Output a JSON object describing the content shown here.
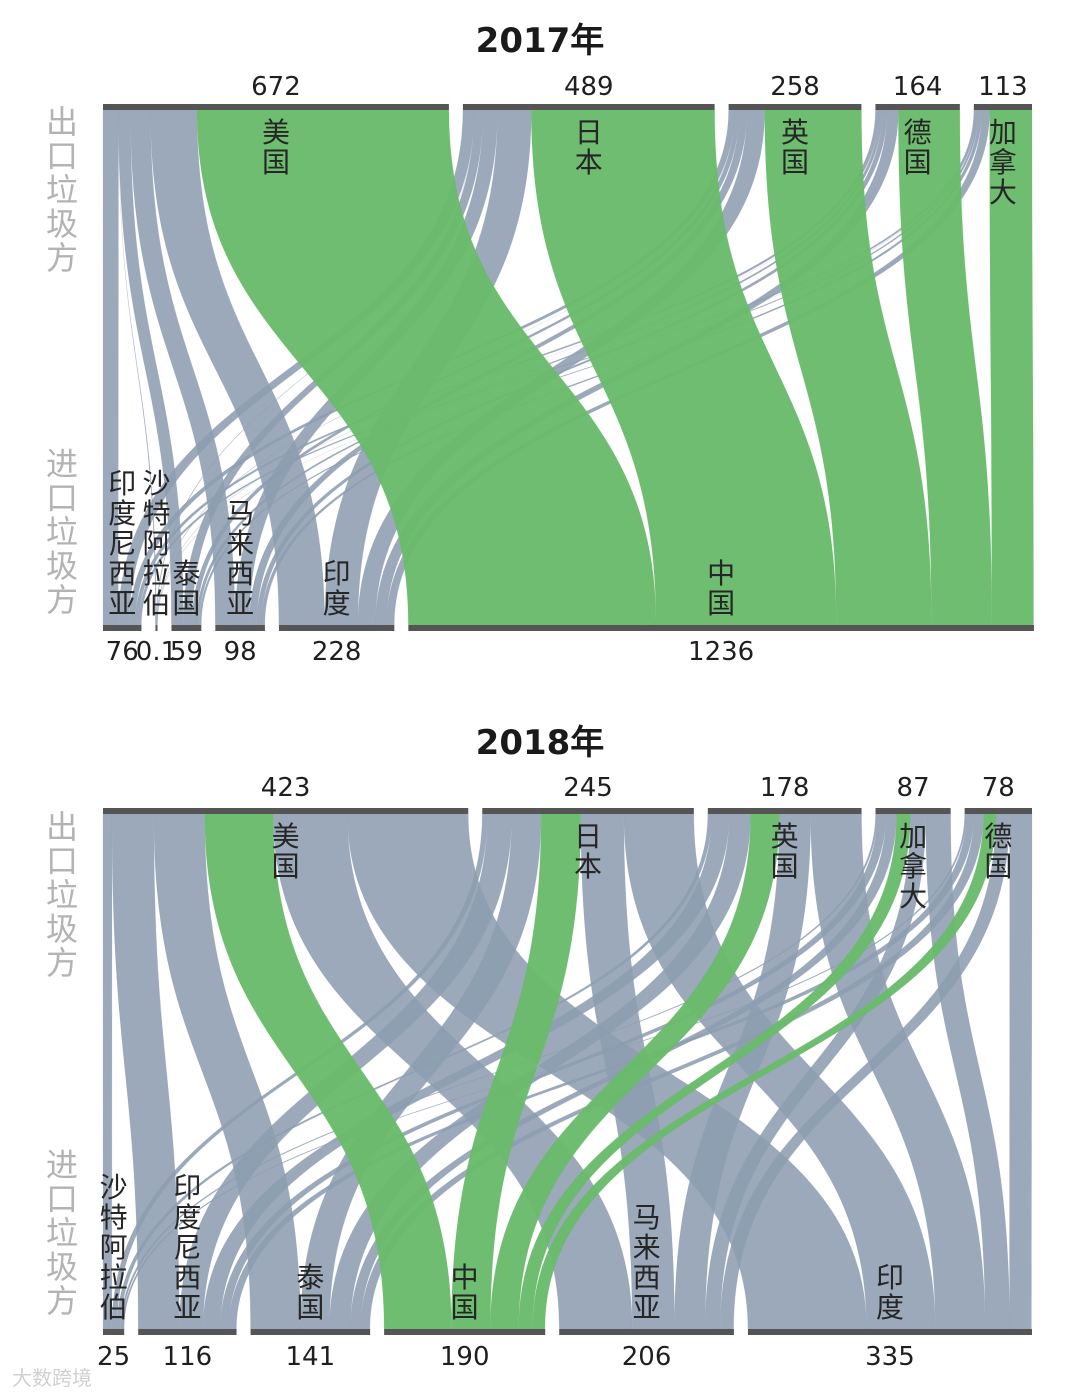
{
  "colors": {
    "highlight": "#69bb6b",
    "other": "#8d9db1",
    "bar": "#555555",
    "side_label": "#b3b3b3"
  },
  "side_labels": {
    "exporter": "出口垃圾方",
    "importer": "进口垃圾方"
  },
  "watermark": "大数跨境",
  "chart_data": [
    {
      "type": "sankey",
      "title": "2017年",
      "top": [
        {
          "name": "美国",
          "value": 672
        },
        {
          "name": "日本",
          "value": 489
        },
        {
          "name": "英国",
          "value": 258
        },
        {
          "name": "德国",
          "value": 164
        },
        {
          "name": "加拿大",
          "value": 113
        }
      ],
      "bottom": [
        {
          "name": "印度尼西亚",
          "value": 76,
          "value_label": "76"
        },
        {
          "name": "沙特阿拉伯",
          "value": 0.1,
          "value_label": "0.1"
        },
        {
          "name": "泰国",
          "value": 59,
          "value_label": "59"
        },
        {
          "name": "马来西亚",
          "value": 98,
          "value_label": "98"
        },
        {
          "name": "印度",
          "value": 228,
          "value_label": "228"
        },
        {
          "name": "中国",
          "value": 1236,
          "value_label": "1236"
        }
      ],
      "highlight_target": "中国"
    },
    {
      "type": "sankey",
      "title": "2018年",
      "top": [
        {
          "name": "美国",
          "value": 423
        },
        {
          "name": "日本",
          "value": 245
        },
        {
          "name": "英国",
          "value": 178
        },
        {
          "name": "加拿大",
          "value": 87
        },
        {
          "name": "德国",
          "value": 78
        }
      ],
      "bottom": [
        {
          "name": "沙特阿拉伯",
          "value": 25,
          "value_label": "25"
        },
        {
          "name": "印度尼西亚",
          "value": 116,
          "value_label": "116"
        },
        {
          "name": "泰国",
          "value": 141,
          "value_label": "141"
        },
        {
          "name": "中国",
          "value": 190,
          "value_label": "190"
        },
        {
          "name": "马来西亚",
          "value": 206,
          "value_label": "206"
        },
        {
          "name": "印度",
          "value": 335,
          "value_label": "335"
        }
      ],
      "highlight_target": "中国"
    }
  ]
}
